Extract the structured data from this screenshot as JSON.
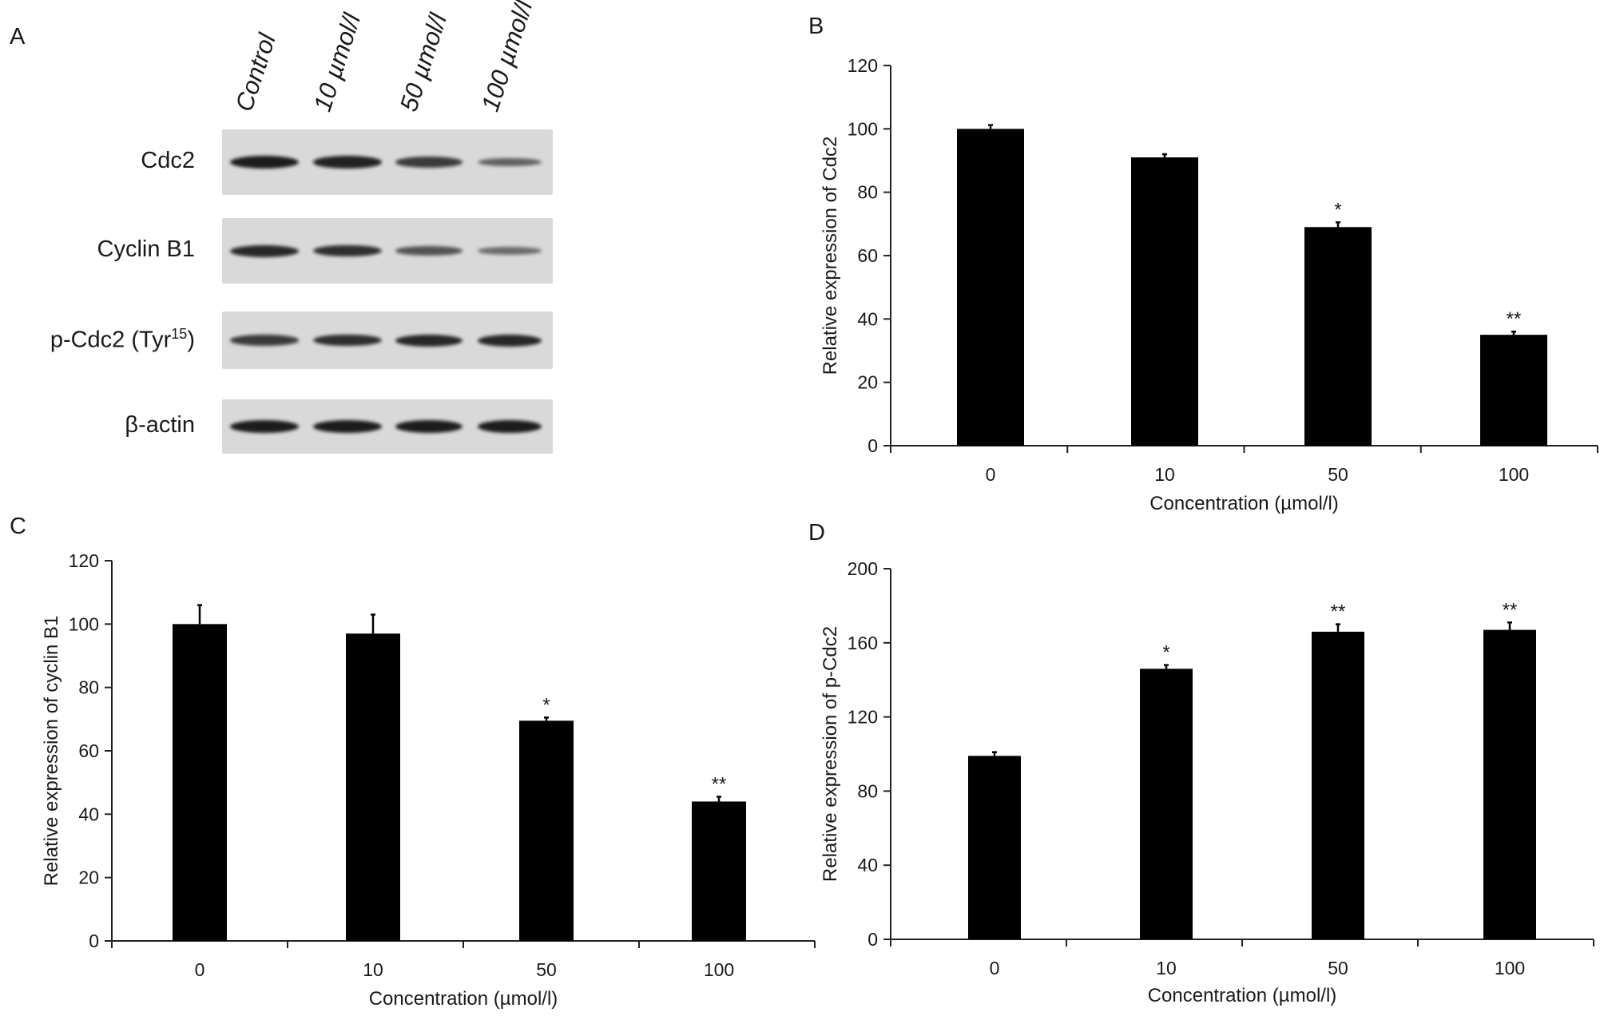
{
  "panel_a": {
    "letter": "A",
    "lanes": [
      "Control",
      "10 µmol/l",
      "50 µmol/l",
      "100 µmol/l"
    ],
    "rows": [
      {
        "label": "Cdc2",
        "intensity": [
          1.0,
          0.95,
          0.75,
          0.45
        ]
      },
      {
        "label": "Cyclin B1",
        "intensity": [
          0.9,
          0.85,
          0.55,
          0.35
        ]
      },
      {
        "label": "p-Cdc2 (Tyr",
        "sup": "15",
        "label_end": ")",
        "intensity": [
          0.75,
          0.85,
          0.9,
          0.9
        ]
      },
      {
        "label": "β-actin",
        "intensity": [
          1.0,
          1.0,
          1.0,
          1.0
        ]
      }
    ]
  },
  "chart_data": [
    {
      "panel": "B",
      "type": "bar",
      "categories": [
        "0",
        "10",
        "50",
        "100"
      ],
      "values": [
        100,
        91,
        69,
        35
      ],
      "errors": [
        1.2,
        1.0,
        1.5,
        1.0
      ],
      "significance": [
        "",
        "",
        "*",
        "**"
      ],
      "xlabel": "Concentration (µmol/l)",
      "ylabel": "Relative expression of Cdc2",
      "ylim": [
        0,
        120
      ],
      "yticks": [
        0,
        20,
        40,
        60,
        80,
        100,
        120
      ]
    },
    {
      "panel": "C",
      "type": "bar",
      "categories": [
        "0",
        "10",
        "50",
        "100"
      ],
      "values": [
        100,
        97,
        69.5,
        44
      ],
      "errors": [
        6,
        6,
        1,
        1.5
      ],
      "significance": [
        "",
        "",
        "*",
        "**"
      ],
      "xlabel": "Concentration (µmol/l)",
      "ylabel": "Relative expression of cyclin B1",
      "ylim": [
        0,
        120
      ],
      "yticks": [
        0,
        20,
        40,
        60,
        80,
        100,
        120
      ]
    },
    {
      "panel": "D",
      "type": "bar",
      "categories": [
        "0",
        "10",
        "50",
        "100"
      ],
      "values": [
        99,
        146,
        166,
        167
      ],
      "errors": [
        2,
        2,
        4,
        4
      ],
      "significance": [
        "",
        "*",
        "**",
        "**"
      ],
      "xlabel": "Concentration (µmol/l)",
      "ylabel": "Relative expression of p-Cdc2",
      "ylim": [
        0,
        200
      ],
      "yticks": [
        0,
        40,
        80,
        120,
        160,
        200
      ]
    }
  ],
  "colors": {
    "bar": "#000000",
    "axis": "#222222",
    "blot_bg": "#d9d9d9",
    "band": "#1c1c1c"
  }
}
